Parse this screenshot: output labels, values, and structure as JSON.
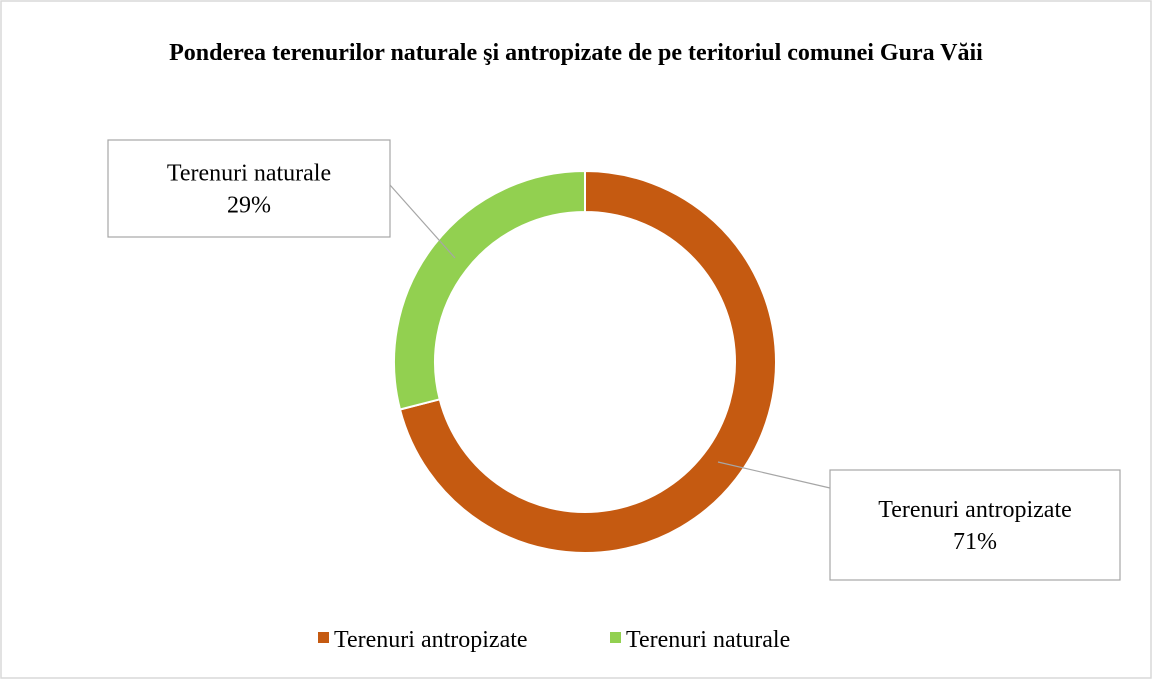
{
  "chart_data": {
    "type": "donut",
    "title": "Ponderea terenurilor naturale şi antropizate de pe teritoriul comunei Gura Văii",
    "categories": [
      "Terenuri antropizate",
      "Terenuri naturale"
    ],
    "values": [
      71,
      29
    ],
    "value_labels": [
      "71%",
      "29%"
    ],
    "colors": [
      "#c55a11",
      "#92d050"
    ],
    "legend": "bottom"
  }
}
